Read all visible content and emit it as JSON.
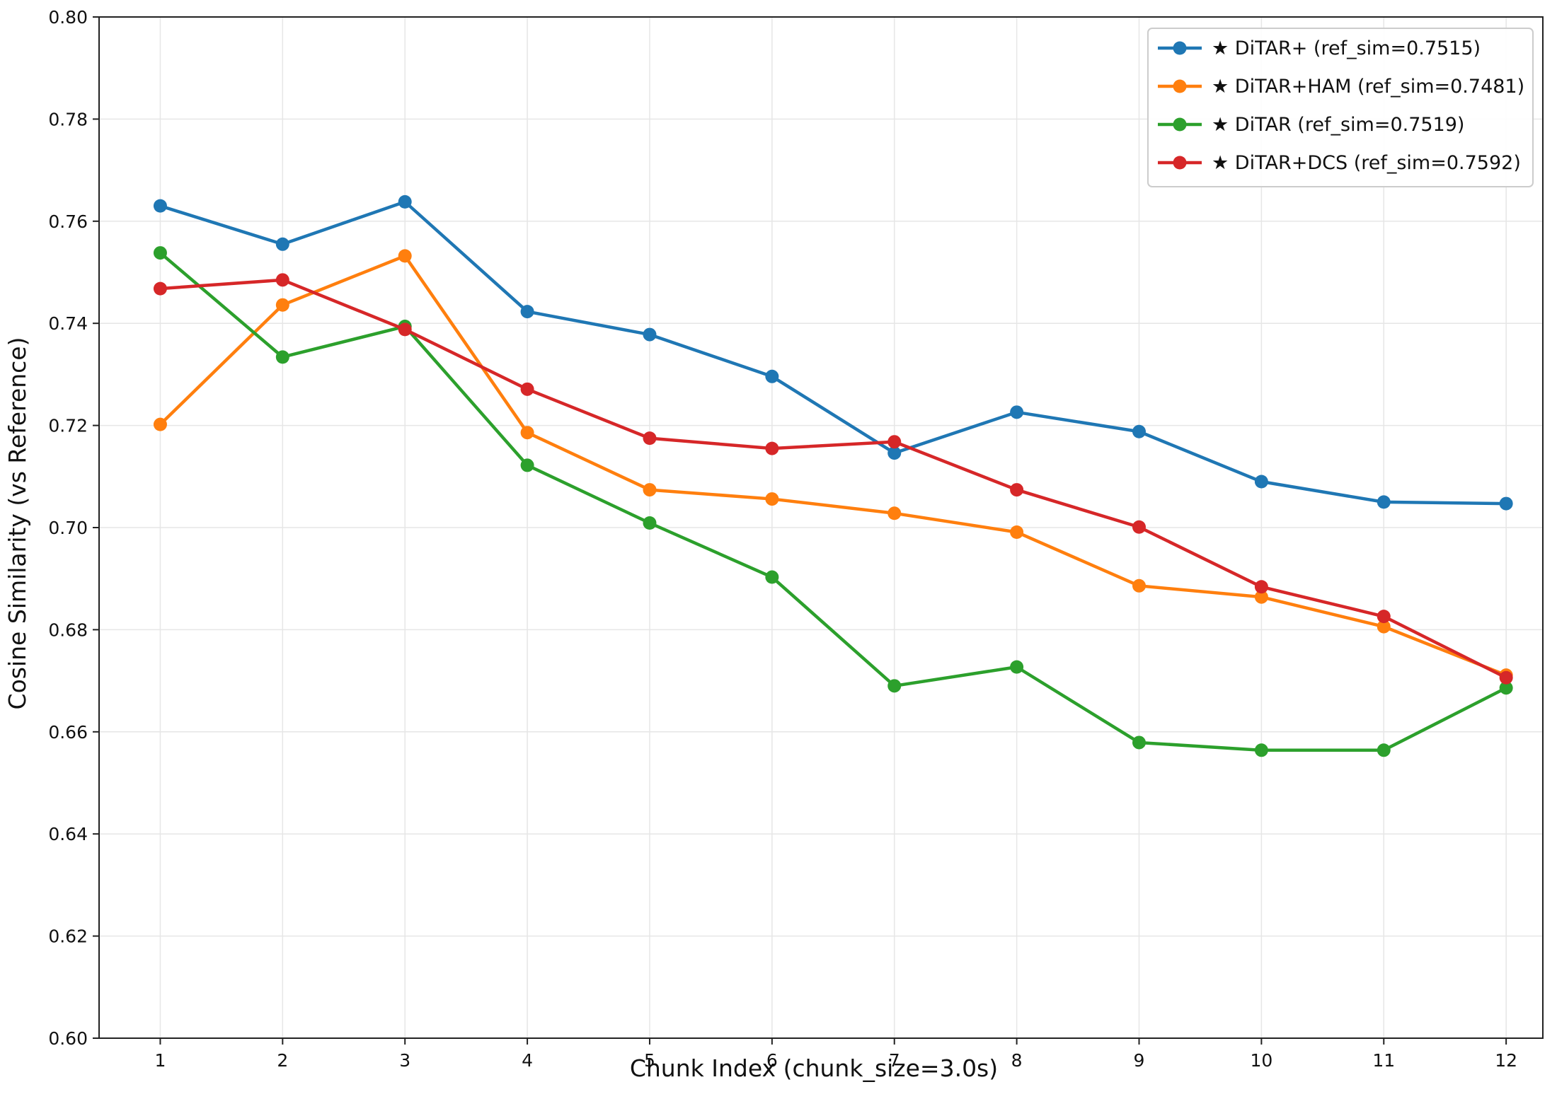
{
  "chart_data": {
    "type": "line",
    "title": "",
    "xlabel": "Chunk Index (chunk_size=3.0s)",
    "ylabel": "Cosine Similarity (vs Reference)",
    "x": [
      1,
      2,
      3,
      4,
      5,
      6,
      7,
      8,
      9,
      10,
      11,
      12
    ],
    "xlim": [
      0.5,
      12.3
    ],
    "ylim": [
      0.6,
      0.8
    ],
    "yticks": [
      "0.60",
      "0.62",
      "0.64",
      "0.66",
      "0.68",
      "0.70",
      "0.72",
      "0.74",
      "0.76",
      "0.78",
      "0.80"
    ],
    "grid": true,
    "legend_position": "top-right",
    "series": [
      {
        "name": "★ DiTAR+ (ref_sim=0.7515)",
        "color": "#1f77b4",
        "values": [
          0.763,
          0.7555,
          0.7638,
          0.7423,
          0.7378,
          0.7296,
          0.7146,
          0.7226,
          0.7188,
          0.709,
          0.705,
          0.7047
        ]
      },
      {
        "name": "★ DiTAR+HAM (ref_sim=0.7481)",
        "color": "#ff7f0e",
        "values": [
          0.7202,
          0.7436,
          0.7532,
          0.7186,
          0.7074,
          0.7056,
          0.7028,
          0.6991,
          0.6886,
          0.6864,
          0.6806,
          0.6711
        ]
      },
      {
        "name": "★ DiTAR (ref_sim=0.7519)",
        "color": "#2ca02c",
        "values": [
          0.7538,
          0.7334,
          0.7394,
          0.7122,
          0.7009,
          0.6903,
          0.669,
          0.6727,
          0.6579,
          0.6564,
          0.6564,
          0.6686
        ]
      },
      {
        "name": "★ DiTAR+DCS (ref_sim=0.7592)",
        "color": "#d62728",
        "values": [
          0.7468,
          0.7485,
          0.7388,
          0.7271,
          0.7175,
          0.7155,
          0.7168,
          0.7074,
          0.7001,
          0.6884,
          0.6826,
          0.6706
        ]
      }
    ]
  }
}
